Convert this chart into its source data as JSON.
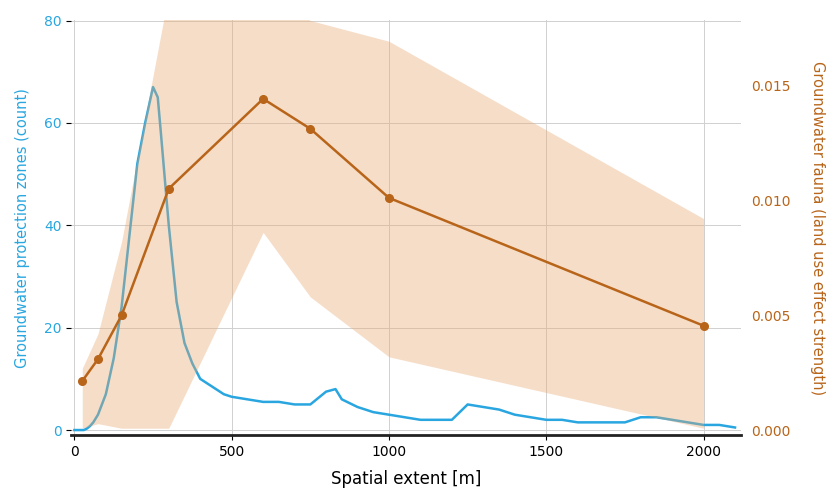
{
  "xlabel": "Spatial extent [m]",
  "ylabel_left": "Groundwater protection zones (count)",
  "ylabel_right": "Groundwater fauna (land use effect strength)",
  "bg_color": "#ffffff",
  "grid_color": "#d0d0d0",
  "blue_x": [
    0,
    5,
    10,
    15,
    20,
    25,
    30,
    40,
    50,
    60,
    75,
    100,
    125,
    150,
    175,
    200,
    225,
    250,
    265,
    275,
    300,
    325,
    350,
    375,
    400,
    425,
    450,
    475,
    500,
    550,
    600,
    650,
    700,
    750,
    800,
    830,
    850,
    900,
    950,
    1000,
    1050,
    1100,
    1150,
    1200,
    1250,
    1300,
    1350,
    1400,
    1450,
    1500,
    1550,
    1600,
    1650,
    1700,
    1750,
    1800,
    1850,
    1900,
    1950,
    2000,
    2050,
    2100
  ],
  "blue_y": [
    0,
    0,
    0,
    0,
    0,
    0,
    0,
    0.3,
    0.8,
    1.5,
    3,
    7,
    14,
    24,
    38,
    52,
    60,
    67,
    65,
    58,
    40,
    25,
    17,
    13,
    10,
    9,
    8,
    7,
    6.5,
    6,
    5.5,
    5.5,
    5,
    5,
    7.5,
    8,
    6,
    4.5,
    3.5,
    3,
    2.5,
    2,
    2,
    2,
    5,
    4.5,
    4,
    3,
    2.5,
    2,
    2,
    1.5,
    1.5,
    1.5,
    1.5,
    2.5,
    2.5,
    2,
    1.5,
    1,
    1,
    0.5
  ],
  "blue_color": "#29a6e0",
  "blue_linewidth": 1.8,
  "orange_x": [
    25,
    75,
    150,
    300,
    600,
    750,
    1000,
    2000
  ],
  "orange_y": [
    0.00215,
    0.0031,
    0.005,
    0.0105,
    0.0144,
    0.0131,
    0.0101,
    0.00455
  ],
  "orange_upper": [
    0.0027,
    0.0042,
    0.0082,
    0.019,
    0.0192,
    0.0178,
    0.0169,
    0.0092
  ],
  "orange_lower": [
    0.0001,
    0.0003,
    0.0001,
    0.0001,
    0.0086,
    0.0058,
    0.0032,
    0.0001
  ],
  "orange_color": "#b8651a",
  "orange_fill_color": "#e8a870",
  "orange_fill_alpha": 0.38,
  "orange_linewidth": 1.8,
  "orange_markersize": 5.5,
  "xlim": [
    -10,
    2120
  ],
  "ylim_left": [
    -1,
    80
  ],
  "ylim_right": [
    -0.0002,
    0.0178
  ],
  "yticks_right": [
    0.0,
    0.005,
    0.01,
    0.015
  ],
  "yticks_left": [
    0,
    20,
    40,
    60,
    80
  ],
  "xticks": [
    0,
    500,
    1000,
    1500,
    2000
  ]
}
